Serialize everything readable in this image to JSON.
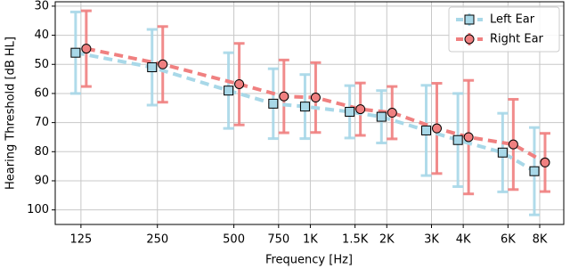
{
  "chart_data": {
    "type": "audiogram",
    "x_label": "Frequency [Hz]",
    "y_label": "Hearing Threshold [dB HL]",
    "x": [
      125,
      250,
      500,
      750,
      1000,
      1500,
      2000,
      3000,
      4000,
      6000,
      8000
    ],
    "x_scale": "log",
    "xlim": [
      99,
      9950
    ],
    "xticks": [
      125,
      250,
      500,
      750,
      {
        "value": 1000,
        "label": "1K"
      },
      {
        "value": 1500,
        "label": "1.5K"
      },
      {
        "value": 2000,
        "label": "2K"
      },
      {
        "value": 3000,
        "label": "3K"
      },
      {
        "value": 4000,
        "label": "4K"
      },
      {
        "value": 6000,
        "label": "6K"
      },
      {
        "value": 8000,
        "label": "8K"
      }
    ],
    "ylim": [
      28.5,
      105
    ],
    "y_inverted": true,
    "yticks": [
      30,
      40,
      50,
      60,
      70,
      80,
      90,
      100
    ],
    "grid": true,
    "legend": "upper right",
    "series": [
      {
        "name": "Left Ear",
        "color": "#a8d8e8",
        "marker": "square",
        "values": [
          46,
          51,
          59,
          63.5,
          64.5,
          66.3,
          68,
          72.7,
          76,
          80.3,
          86.7
        ],
        "errors": [
          14,
          13,
          13,
          12,
          11,
          9,
          9,
          15.5,
          16,
          13.5,
          15
        ]
      },
      {
        "name": "Right Ear",
        "color": "#f08080",
        "marker": "circle",
        "values": [
          44.6,
          50,
          56.8,
          61,
          61.4,
          65.4,
          66.6,
          72,
          75,
          77.5,
          83.7
        ],
        "errors": [
          13,
          13,
          14,
          12.5,
          12,
          9,
          9,
          15.5,
          19.5,
          15.5,
          10
        ]
      }
    ]
  }
}
